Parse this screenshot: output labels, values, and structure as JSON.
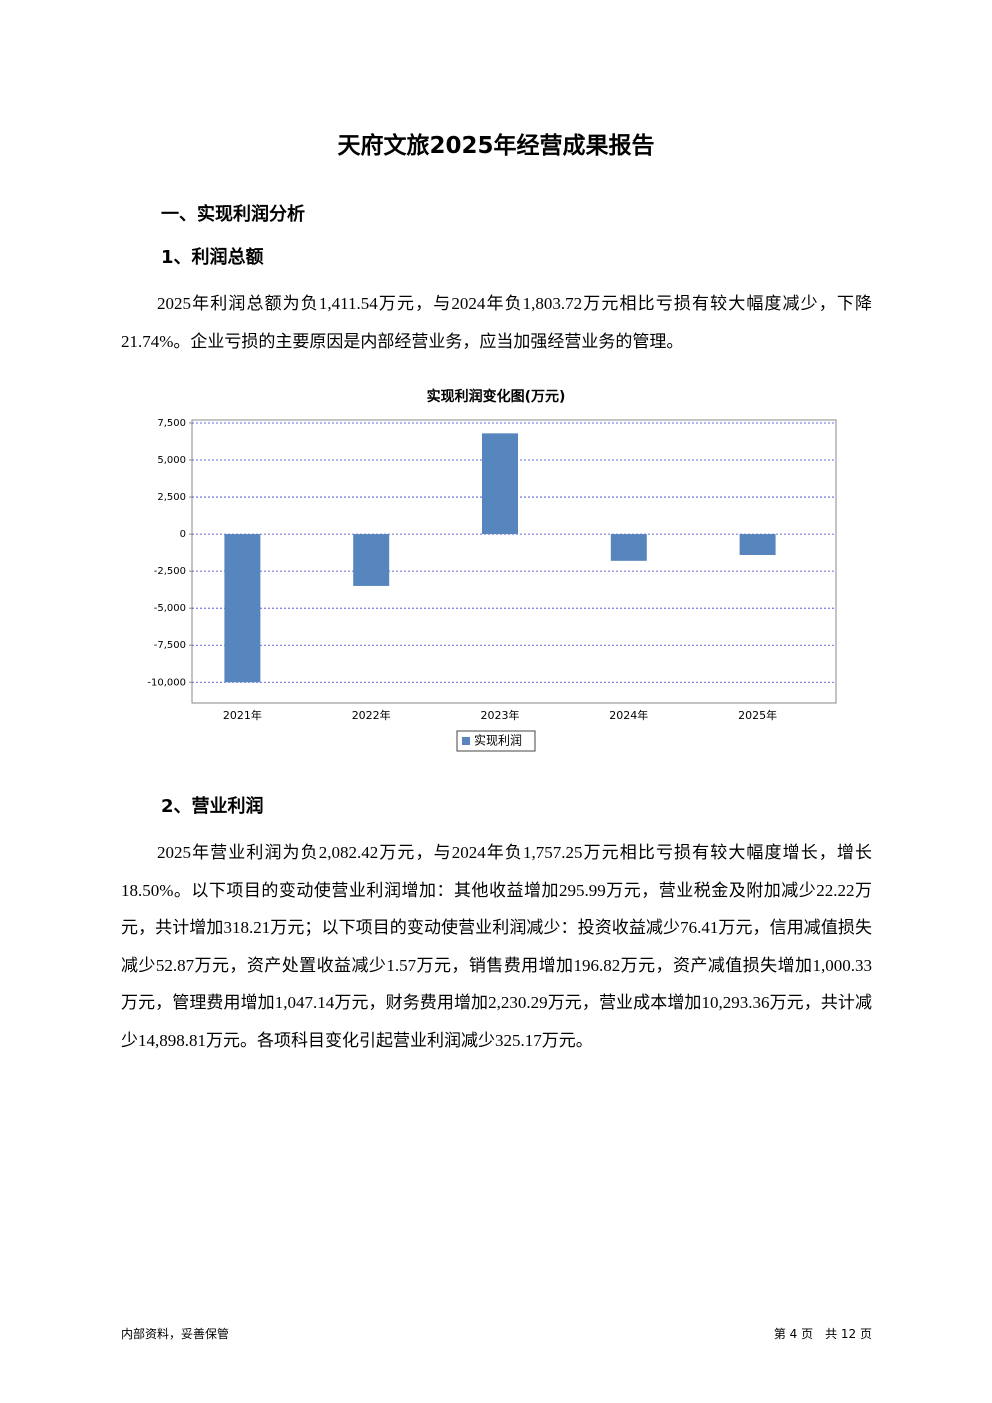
{
  "title": "天府文旅2025年经营成果报告",
  "section": {
    "heading": "一、实现利润分析"
  },
  "subsections": [
    {
      "heading": "1、利润总额",
      "paragraph": "2025年利润总额为负1,411.54万元，与2024年负1,803.72万元相比亏损有较大幅度减少，下降21.74%。企业亏损的主要原因是内部经营业务，应当加强经营业务的管理。"
    },
    {
      "heading": "2、营业利润",
      "paragraph": "2025年营业利润为负2,082.42万元，与2024年负1,757.25万元相比亏损有较大幅度增长，增长18.50%。以下项目的变动使营业利润增加：其他收益增加295.99万元，营业税金及附加减少22.22万元，共计增加318.21万元；以下项目的变动使营业利润减少：投资收益减少76.41万元，信用减值损失减少52.87万元，资产处置收益减少1.57万元，销售费用增加196.82万元，资产减值损失增加1,000.33万元，管理费用增加1,047.14万元，财务费用增加2,230.29万元，营业成本增加10,293.36万元，共计减少14,898.81万元。各项科目变化引起营业利润减少325.17万元。"
    }
  ],
  "chart_data": {
    "type": "bar",
    "title": "实现利润变化图(万元)",
    "categories": [
      "2021年",
      "2022年",
      "2023年",
      "2024年",
      "2025年"
    ],
    "series": [
      {
        "name": "实现利润",
        "color": "#5686bd",
        "values": [
          -10000,
          -3500,
          6800,
          -1803.72,
          -1411.54
        ]
      }
    ],
    "ylim": [
      -11400,
      7700
    ],
    "yticks": [
      {
        "value": 7500,
        "label": "7,500"
      },
      {
        "value": 5000,
        "label": "5,000"
      },
      {
        "value": 2500,
        "label": "2,500"
      },
      0,
      {
        "value": -2500,
        "label": "-2,500"
      },
      {
        "value": -5000,
        "label": "-5,000"
      },
      {
        "value": -7500,
        "label": "-7,500"
      },
      {
        "value": -10000,
        "label": "-10,000"
      }
    ],
    "grid": true
  },
  "footer": {
    "left": "内部资料，妥善保管",
    "right": "第 4 页　共 12 页"
  }
}
